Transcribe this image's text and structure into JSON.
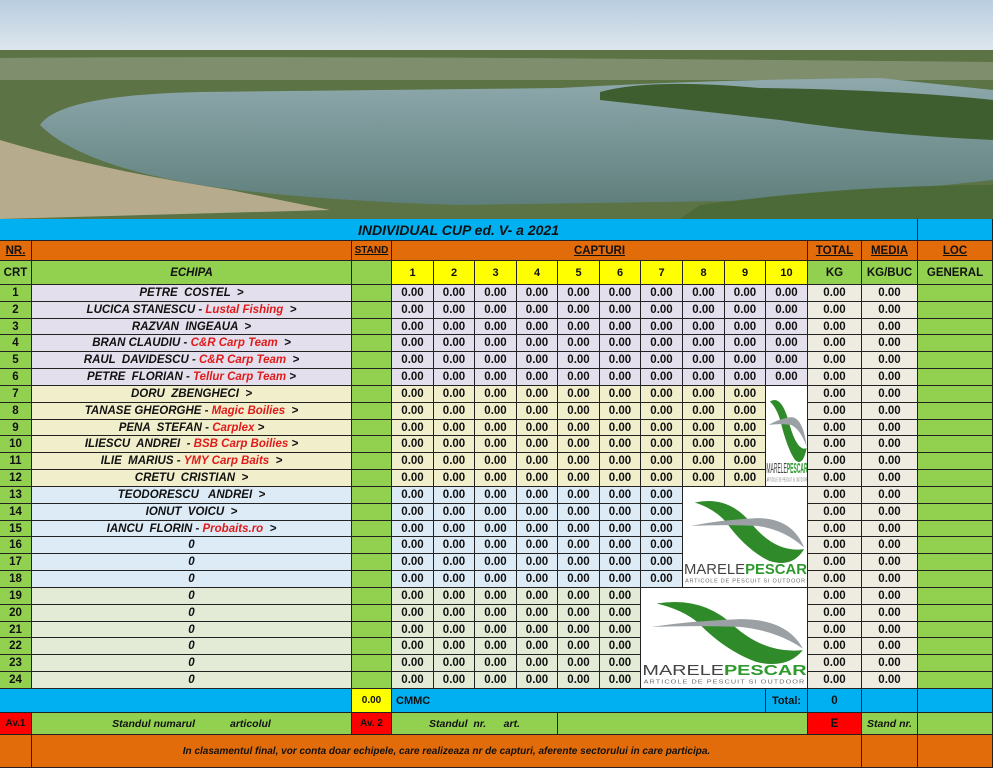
{
  "title": "INDIVIDUAL  CUP ed. V- a  2021",
  "colors": {
    "green": "#92d050",
    "orange": "#e36c0a",
    "blue": "#00b0f0",
    "yellow": "#ffff00",
    "red": "#ff0000",
    "total_bg": "#eeece1",
    "groups": [
      "#e4dfec",
      "#f1eecb",
      "#ddebf7",
      "#e3ebd6"
    ]
  },
  "header": {
    "nr": "NR.",
    "crt": "CRT",
    "echipa": "ECHIPA",
    "stand": "STAND",
    "capturi": "CAPTURI",
    "captures": [
      "1",
      "2",
      "3",
      "4",
      "5",
      "6",
      "7",
      "8",
      "9",
      "10"
    ],
    "total": "TOTAL",
    "kg": "KG",
    "media": "MEDIA",
    "kgbuc": "KG/BUC",
    "loc": "LOC",
    "general": "GENERAL"
  },
  "rows": [
    {
      "nr": "1",
      "name": "PETRE  COSTEL  >",
      "team": "",
      "suffix": "",
      "group": 0,
      "caps": [
        "0.00",
        "0.00",
        "0.00",
        "0.00",
        "0.00",
        "0.00",
        "0.00",
        "0.00",
        "0.00",
        "0.00"
      ],
      "total": "0.00",
      "media": "0.00"
    },
    {
      "nr": "2",
      "name": "LUCICA STANESCU - ",
      "team": "Lustal Fishing",
      "suffix": "  >",
      "group": 0,
      "caps": [
        "0.00",
        "0.00",
        "0.00",
        "0.00",
        "0.00",
        "0.00",
        "0.00",
        "0.00",
        "0.00",
        "0.00"
      ],
      "total": "0.00",
      "media": "0.00"
    },
    {
      "nr": "3",
      "name": "RAZVAN  INGEAUA  >",
      "team": "",
      "suffix": "",
      "group": 0,
      "caps": [
        "0.00",
        "0.00",
        "0.00",
        "0.00",
        "0.00",
        "0.00",
        "0.00",
        "0.00",
        "0.00",
        "0.00"
      ],
      "total": "0.00",
      "media": "0.00"
    },
    {
      "nr": "4",
      "name": "BRAN CLAUDIU - ",
      "team": "C&R Carp Team",
      "suffix": "  >",
      "group": 0,
      "caps": [
        "0.00",
        "0.00",
        "0.00",
        "0.00",
        "0.00",
        "0.00",
        "0.00",
        "0.00",
        "0.00",
        "0.00"
      ],
      "total": "0.00",
      "media": "0.00"
    },
    {
      "nr": "5",
      "name": "RAUL  DAVIDESCU - ",
      "team": "C&R Carp Team",
      "suffix": "  >",
      "group": 0,
      "caps": [
        "0.00",
        "0.00",
        "0.00",
        "0.00",
        "0.00",
        "0.00",
        "0.00",
        "0.00",
        "0.00",
        "0.00"
      ],
      "total": "0.00",
      "media": "0.00"
    },
    {
      "nr": "6",
      "name": "PETRE  FLORIAN - ",
      "team": "Tellur Carp Team",
      "suffix": " >",
      "group": 0,
      "caps": [
        "0.00",
        "0.00",
        "0.00",
        "0.00",
        "0.00",
        "0.00",
        "0.00",
        "0.00",
        "0.00",
        "0.00"
      ],
      "total": "0.00",
      "media": "0.00"
    },
    {
      "nr": "7",
      "name": "DORU  ZBENGHECI  >",
      "team": "",
      "suffix": "",
      "group": 1,
      "caps": [
        "0.00",
        "0.00",
        "0.00",
        "0.00",
        "0.00",
        "0.00",
        "0.00",
        "0.00",
        "0.00"
      ],
      "total": "0.00",
      "media": "0.00"
    },
    {
      "nr": "8",
      "name": "TANASE GHEORGHE - ",
      "team": "Magic Boilies",
      "suffix": "  >",
      "group": 1,
      "caps": [
        "0.00",
        "0.00",
        "0.00",
        "0.00",
        "0.00",
        "0.00",
        "0.00",
        "0.00",
        "0.00"
      ],
      "total": "0.00",
      "media": "0.00"
    },
    {
      "nr": "9",
      "name": "PENA  STEFAN - ",
      "team": "Carplex",
      "suffix": " >",
      "group": 1,
      "caps": [
        "0.00",
        "0.00",
        "0.00",
        "0.00",
        "0.00",
        "0.00",
        "0.00",
        "0.00",
        "0.00"
      ],
      "total": "0.00",
      "media": "0.00"
    },
    {
      "nr": "10",
      "name": "ILIESCU  ANDREI  - ",
      "team": "BSB Carp Boilies",
      "suffix": " >",
      "group": 1,
      "caps": [
        "0.00",
        "0.00",
        "0.00",
        "0.00",
        "0.00",
        "0.00",
        "0.00",
        "0.00",
        "0.00"
      ],
      "total": "0.00",
      "media": "0.00"
    },
    {
      "nr": "11",
      "name": "ILIE  MARIUS - ",
      "team": "YMY Carp Baits",
      "suffix": "  >",
      "group": 1,
      "caps": [
        "0.00",
        "0.00",
        "0.00",
        "0.00",
        "0.00",
        "0.00",
        "0.00",
        "0.00",
        "0.00"
      ],
      "total": "0.00",
      "media": "0.00"
    },
    {
      "nr": "12",
      "name": "CRETU  CRISTIAN  >",
      "team": "",
      "suffix": "",
      "group": 1,
      "caps": [
        "0.00",
        "0.00",
        "0.00",
        "0.00",
        "0.00",
        "0.00",
        "0.00",
        "0.00",
        "0.00"
      ],
      "total": "0.00",
      "media": "0.00"
    },
    {
      "nr": "13",
      "name": "TEODORESCU   ANDREI  >",
      "team": "",
      "suffix": "",
      "group": 2,
      "caps": [
        "0.00",
        "0.00",
        "0.00",
        "0.00",
        "0.00",
        "0.00",
        "0.00"
      ],
      "total": "0.00",
      "media": "0.00"
    },
    {
      "nr": "14",
      "name": "IONUT  VOICU  >",
      "team": "",
      "suffix": "",
      "group": 2,
      "caps": [
        "0.00",
        "0.00",
        "0.00",
        "0.00",
        "0.00",
        "0.00",
        "0.00"
      ],
      "total": "0.00",
      "media": "0.00"
    },
    {
      "nr": "15",
      "name": "IANCU  FLORIN - ",
      "team": "Probaits.ro",
      "suffix": "  >",
      "group": 2,
      "caps": [
        "0.00",
        "0.00",
        "0.00",
        "0.00",
        "0.00",
        "0.00",
        "0.00"
      ],
      "total": "0.00",
      "media": "0.00"
    },
    {
      "nr": "16",
      "name": "0",
      "team": "",
      "suffix": "",
      "group": 2,
      "caps": [
        "0.00",
        "0.00",
        "0.00",
        "0.00",
        "0.00",
        "0.00",
        "0.00"
      ],
      "total": "0.00",
      "media": "0.00"
    },
    {
      "nr": "17",
      "name": "0",
      "team": "",
      "suffix": "",
      "group": 2,
      "caps": [
        "0.00",
        "0.00",
        "0.00",
        "0.00",
        "0.00",
        "0.00",
        "0.00"
      ],
      "total": "0.00",
      "media": "0.00"
    },
    {
      "nr": "18",
      "name": "0",
      "team": "",
      "suffix": "",
      "group": 2,
      "caps": [
        "0.00",
        "0.00",
        "0.00",
        "0.00",
        "0.00",
        "0.00",
        "0.00"
      ],
      "total": "0.00",
      "media": "0.00"
    },
    {
      "nr": "19",
      "name": "0",
      "team": "",
      "suffix": "",
      "group": 3,
      "caps": [
        "0.00",
        "0.00",
        "0.00",
        "0.00",
        "0.00",
        "0.00"
      ],
      "total": "0.00",
      "media": "0.00"
    },
    {
      "nr": "20",
      "name": "0",
      "team": "",
      "suffix": "",
      "group": 3,
      "caps": [
        "0.00",
        "0.00",
        "0.00",
        "0.00",
        "0.00",
        "0.00"
      ],
      "total": "0.00",
      "media": "0.00"
    },
    {
      "nr": "21",
      "name": "0",
      "team": "",
      "suffix": "",
      "group": 3,
      "caps": [
        "0.00",
        "0.00",
        "0.00",
        "0.00",
        "0.00",
        "0.00"
      ],
      "total": "0.00",
      "media": "0.00"
    },
    {
      "nr": "22",
      "name": "0",
      "team": "",
      "suffix": "",
      "group": 3,
      "caps": [
        "0.00",
        "0.00",
        "0.00",
        "0.00",
        "0.00",
        "0.00"
      ],
      "total": "0.00",
      "media": "0.00"
    },
    {
      "nr": "23",
      "name": "0",
      "team": "",
      "suffix": "",
      "group": 3,
      "caps": [
        "0.00",
        "0.00",
        "0.00",
        "0.00",
        "0.00",
        "0.00"
      ],
      "total": "0.00",
      "media": "0.00"
    },
    {
      "nr": "24",
      "name": "0",
      "team": "",
      "suffix": "",
      "group": 3,
      "caps": [
        "0.00",
        "0.00",
        "0.00",
        "0.00",
        "0.00",
        "0.00"
      ],
      "total": "0.00",
      "media": "0.00"
    }
  ],
  "logo": {
    "text_a": "MARELE",
    "text_b": "PESCAR",
    "tagline": "ARTICOLE DE PESCUIT SI OUTDOOR"
  },
  "summary": {
    "stand_value": "0.00",
    "cmmc": "CMMC",
    "total_label": "Total:",
    "total_value": "0"
  },
  "av": {
    "av1": "Av.1",
    "av1_text": "Standul numarul            articolul",
    "av2": "Av. 2",
    "av2_text": "Standul  nr.      art.",
    "e": "E",
    "stand_nr": "Stand nr."
  },
  "footer": "In clasamentul final, vor conta doar echipele, care realizeaza nr de capturi, aferente sectorului in care participa."
}
